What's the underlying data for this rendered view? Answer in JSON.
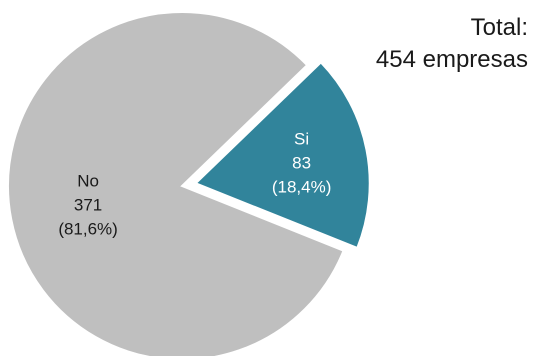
{
  "chart_data": {
    "type": "pie",
    "total_label_line1": "Total:",
    "total_label_line2": "454 empresas",
    "slices": [
      {
        "name": "Si",
        "value": 83,
        "percent": "(18,4%)",
        "color": "#31849b",
        "label_color": "#ffffff",
        "exploded": true
      },
      {
        "name": "No",
        "value": 371,
        "percent": "(81,6%)",
        "color": "#bfbfbf",
        "label_color": "#1a1a1a",
        "exploded": false
      }
    ]
  }
}
